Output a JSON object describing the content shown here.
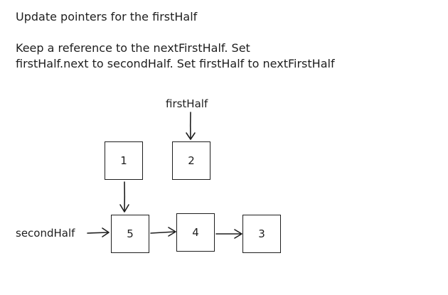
{
  "title": "Update pointers for the firstHalf",
  "description": {
    "line1": "Keep a reference to the nextFirstHalf. Set",
    "line2": "firstHalf.next to secondHalf. Set firstHalf to nextFirstHalf"
  },
  "pointers": {
    "first_half": "firstHalf",
    "second_half": "secondHalf"
  },
  "nodes": {
    "node_1": "1",
    "node_2": "2",
    "node_5": "5",
    "node_4": "4",
    "node_3": "3"
  }
}
